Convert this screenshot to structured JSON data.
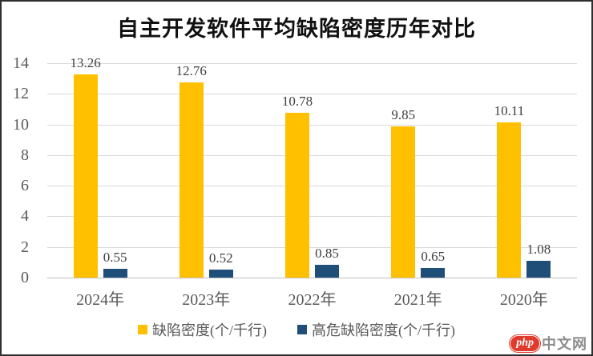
{
  "chart_data": {
    "type": "bar",
    "title": "自主开发软件平均缺陷密度历年对比",
    "categories": [
      "2024年",
      "2023年",
      "2022年",
      "2021年",
      "2020年"
    ],
    "series": [
      {
        "name": "缺陷密度(个/千行)",
        "color": "#FFC000",
        "values": [
          13.26,
          12.76,
          10.78,
          9.85,
          10.11
        ]
      },
      {
        "name": "高危缺陷密度(个/千行)",
        "color": "#1F4E79",
        "values": [
          0.55,
          0.52,
          0.85,
          0.65,
          1.08
        ]
      }
    ],
    "xlabel": "",
    "ylabel": "",
    "ylim": [
      0,
      14
    ],
    "yticks": [
      0,
      2,
      4,
      6,
      8,
      10,
      12,
      14
    ],
    "grid": true,
    "legend_position": "bottom"
  },
  "watermark": {
    "brand": "php",
    "site": "中文网"
  },
  "colors": {
    "bar_primary": "#FFC000",
    "bar_secondary": "#1F4E79",
    "gridline": "#D9D9D9",
    "axis_text": "#595959",
    "label_text": "#3F3F3F",
    "watermark_red": "#E03A2D"
  }
}
